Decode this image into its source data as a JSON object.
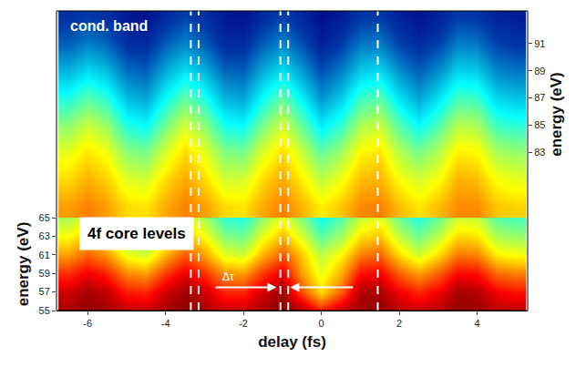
{
  "chart_data": {
    "type": "heatmap",
    "x_label": "delay (fs)",
    "y_label": "energy (eV)",
    "y2_label": "energy (eV)",
    "x": [
      -6.5,
      -6,
      -5.5,
      -5,
      -4.5,
      -4,
      -3.5,
      -3,
      -2.5,
      -2,
      -1.5,
      -1,
      -0.5,
      0,
      0.5,
      1,
      1.5,
      2,
      2.5,
      3,
      3.5,
      4,
      4.5,
      5
    ],
    "xlim": [
      -6.8,
      5.3
    ],
    "xticks": [
      -6,
      -4,
      -2,
      0,
      2,
      4
    ],
    "y": [
      55,
      57,
      59,
      61,
      63,
      65
    ],
    "ylim": [
      55,
      65
    ],
    "yticks": [
      55,
      57,
      59,
      61,
      63,
      65
    ],
    "z": [
      [
        0.96,
        0.98,
        0.97,
        0.93,
        0.92,
        0.96,
        0.99,
        0.96,
        0.92,
        0.92,
        0.96,
        0.99,
        0.95,
        0.85,
        0.93,
        0.97,
        0.98,
        0.94,
        0.92,
        0.94,
        0.98,
        0.97,
        0.94,
        0.93
      ],
      [
        0.92,
        0.96,
        0.93,
        0.85,
        0.84,
        0.92,
        0.97,
        0.92,
        0.84,
        0.84,
        0.92,
        0.97,
        0.8,
        0.66,
        0.78,
        0.95,
        0.96,
        0.88,
        0.84,
        0.88,
        0.96,
        0.95,
        0.88,
        0.86
      ],
      [
        0.83,
        0.88,
        0.84,
        0.74,
        0.72,
        0.82,
        0.89,
        0.83,
        0.73,
        0.72,
        0.82,
        0.89,
        0.72,
        0.6,
        0.7,
        0.86,
        0.88,
        0.78,
        0.72,
        0.78,
        0.87,
        0.86,
        0.77,
        0.75
      ],
      [
        0.72,
        0.78,
        0.73,
        0.61,
        0.58,
        0.7,
        0.79,
        0.72,
        0.6,
        0.58,
        0.7,
        0.79,
        0.68,
        0.56,
        0.63,
        0.75,
        0.78,
        0.66,
        0.58,
        0.66,
        0.76,
        0.75,
        0.64,
        0.62
      ],
      [
        0.62,
        0.68,
        0.63,
        0.51,
        0.48,
        0.6,
        0.69,
        0.62,
        0.5,
        0.48,
        0.6,
        0.69,
        0.58,
        0.46,
        0.53,
        0.65,
        0.68,
        0.56,
        0.48,
        0.56,
        0.66,
        0.65,
        0.54,
        0.52
      ],
      [
        0.54,
        0.6,
        0.55,
        0.43,
        0.4,
        0.52,
        0.61,
        0.54,
        0.42,
        0.4,
        0.52,
        0.61,
        0.5,
        0.38,
        0.45,
        0.57,
        0.6,
        0.48,
        0.4,
        0.48,
        0.58,
        0.57,
        0.46,
        0.44
      ]
    ],
    "y2": [
      79,
      81,
      83,
      85,
      87,
      89,
      91,
      93
    ],
    "y2lim": [
      78.2,
      93.4
    ],
    "y2ticks": [
      83,
      85,
      87,
      89,
      91
    ],
    "z2": [
      [
        0.72,
        0.75,
        0.72,
        0.66,
        0.65,
        0.71,
        0.75,
        0.72,
        0.66,
        0.65,
        0.71,
        0.75,
        0.7,
        0.64,
        0.68,
        0.74,
        0.75,
        0.69,
        0.65,
        0.69,
        0.74,
        0.74,
        0.68,
        0.67
      ],
      [
        0.66,
        0.7,
        0.67,
        0.59,
        0.58,
        0.66,
        0.71,
        0.66,
        0.58,
        0.58,
        0.66,
        0.71,
        0.64,
        0.56,
        0.61,
        0.69,
        0.7,
        0.62,
        0.58,
        0.62,
        0.7,
        0.69,
        0.62,
        0.6
      ],
      [
        0.6,
        0.65,
        0.61,
        0.51,
        0.49,
        0.59,
        0.66,
        0.6,
        0.5,
        0.49,
        0.59,
        0.66,
        0.57,
        0.47,
        0.53,
        0.63,
        0.65,
        0.55,
        0.49,
        0.55,
        0.64,
        0.63,
        0.54,
        0.52
      ],
      [
        0.51,
        0.57,
        0.52,
        0.4,
        0.37,
        0.49,
        0.58,
        0.51,
        0.39,
        0.37,
        0.49,
        0.58,
        0.47,
        0.35,
        0.42,
        0.54,
        0.57,
        0.45,
        0.37,
        0.45,
        0.55,
        0.54,
        0.43,
        0.41
      ],
      [
        0.4,
        0.46,
        0.41,
        0.29,
        0.26,
        0.38,
        0.47,
        0.4,
        0.28,
        0.26,
        0.38,
        0.47,
        0.36,
        0.24,
        0.31,
        0.43,
        0.46,
        0.34,
        0.26,
        0.34,
        0.44,
        0.43,
        0.32,
        0.3
      ],
      [
        0.28,
        0.33,
        0.29,
        0.19,
        0.17,
        0.27,
        0.34,
        0.28,
        0.18,
        0.17,
        0.27,
        0.34,
        0.25,
        0.15,
        0.21,
        0.31,
        0.33,
        0.23,
        0.17,
        0.23,
        0.32,
        0.31,
        0.22,
        0.2
      ],
      [
        0.17,
        0.21,
        0.18,
        0.1,
        0.09,
        0.17,
        0.22,
        0.17,
        0.09,
        0.09,
        0.17,
        0.22,
        0.15,
        0.07,
        0.12,
        0.2,
        0.21,
        0.13,
        0.09,
        0.13,
        0.21,
        0.2,
        0.13,
        0.11
      ],
      [
        0.1,
        0.12,
        0.1,
        0.05,
        0.04,
        0.09,
        0.13,
        0.1,
        0.05,
        0.04,
        0.09,
        0.13,
        0.08,
        0.03,
        0.06,
        0.11,
        0.12,
        0.07,
        0.04,
        0.07,
        0.12,
        0.11,
        0.07,
        0.06
      ]
    ],
    "zlim": [
      0,
      1
    ],
    "grid": false,
    "annotations": [
      {
        "text": "cond. band",
        "x": -6.5,
        "y": 92.3,
        "axis": "y2"
      },
      {
        "text": "4f core levels",
        "x": -4.75,
        "y": 63.3
      },
      {
        "text": "Δτ",
        "x": -2.4,
        "y": 58.6
      }
    ],
    "vlines": [
      -3.35,
      -3.15,
      -1.05,
      -0.85,
      1.45
    ],
    "arrows": [
      {
        "x0": -2.75,
        "x1": -1.15,
        "y": 57.5
      },
      {
        "x0": 0.85,
        "x1": -0.8,
        "y": 57.5
      }
    ]
  }
}
